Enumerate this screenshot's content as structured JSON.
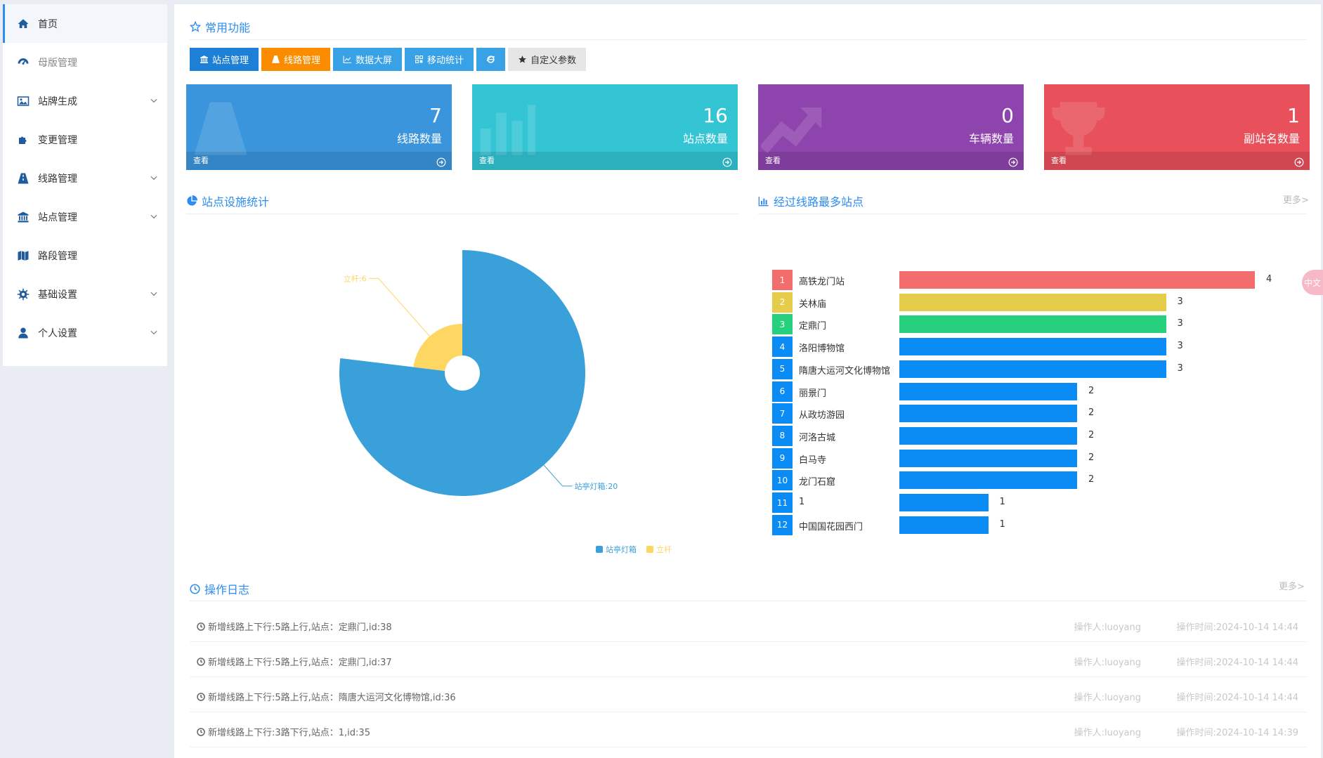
{
  "sidebar": {
    "items": [
      {
        "label": "首页",
        "icon": "home-icon",
        "active": true
      },
      {
        "label": "母版管理",
        "icon": "dashboard-icon"
      },
      {
        "label": "站牌生成",
        "icon": "image-icon",
        "expandable": true
      },
      {
        "label": "变更管理",
        "icon": "puzzle-icon"
      },
      {
        "label": "线路管理",
        "icon": "road-icon",
        "expandable": true
      },
      {
        "label": "站点管理",
        "icon": "bank-icon",
        "expandable": true
      },
      {
        "label": "路段管理",
        "icon": "map-icon"
      },
      {
        "label": "基础设置",
        "icon": "gear-icon",
        "expandable": true
      },
      {
        "label": "个人设置",
        "icon": "user-icon",
        "expandable": true
      }
    ]
  },
  "common": {
    "title": "常用功能",
    "buttons": [
      {
        "label": "站点管理",
        "icon": "bank-icon",
        "color": "#1e7fd6"
      },
      {
        "label": "线路管理",
        "icon": "road-icon",
        "color": "#fb8c00"
      },
      {
        "label": "数据大屏",
        "icon": "line-chart-icon",
        "color": "#39a2e6"
      },
      {
        "label": "移动统计",
        "icon": "qrcode-icon",
        "color": "#39a2e6"
      },
      {
        "label": "",
        "icon": "ie-icon",
        "color": "#39a2e6"
      },
      {
        "label": "自定义参数",
        "icon": "star-icon",
        "color": "#e6e6e6"
      }
    ]
  },
  "cards": [
    {
      "value": "7",
      "label": "线路数量",
      "link": "查看",
      "color": "#3a95dd",
      "icon": "road-icon"
    },
    {
      "value": "16",
      "label": "站点数量",
      "link": "查看",
      "color": "#33c5d4",
      "icon": "bar-chart-icon"
    },
    {
      "value": "0",
      "label": "车辆数量",
      "link": "查看",
      "color": "#8e44ad",
      "icon": "trend-icon"
    },
    {
      "value": "1",
      "label": "副站名数量",
      "link": "查看",
      "color": "#e8505b",
      "icon": "trophy-icon"
    }
  ],
  "pie_section": {
    "title": "站点设施统计"
  },
  "bar_section": {
    "title": "经过线路最多站点",
    "more": "更多>"
  },
  "log_section": {
    "title": "操作日志",
    "more": "更多>",
    "rows": [
      {
        "text": "新增线路上下行:5路上行,站点：定鼎门,id:38",
        "operator": "操作人:luoyang",
        "time": "操作时间:2024-10-14 14:44"
      },
      {
        "text": "新增线路上下行:5路上行,站点：定鼎门,id:37",
        "operator": "操作人:luoyang",
        "time": "操作时间:2024-10-14 14:44"
      },
      {
        "text": "新增线路上下行:5路上行,站点：隋唐大运河文化博物馆,id:36",
        "operator": "操作人:luoyang",
        "time": "操作时间:2024-10-14 14:44"
      },
      {
        "text": "新增线路上下行:3路下行,站点：1,id:35",
        "operator": "操作人:luoyang",
        "time": "操作时间:2024-10-14 14:39"
      }
    ]
  },
  "float_button": {
    "label": "中文"
  },
  "chart_data": [
    {
      "type": "pie",
      "rose": true,
      "slices": [
        {
          "name": "站亭灯箱",
          "value": 20,
          "label": "站亭灯箱:20",
          "color": "#3aa0d9"
        },
        {
          "name": "立杆",
          "value": 6,
          "label": "立杆:6",
          "color": "#fdd762"
        }
      ],
      "legend": [
        "站亭灯箱",
        "立杆"
      ],
      "legend_position": "bottom"
    },
    {
      "type": "bar",
      "orientation": "horizontal",
      "categories": [
        "高铁龙门站",
        "关林庙",
        "定鼎门",
        "洛阳博物馆",
        "隋唐大运河文化博物馆",
        "丽景门",
        "从政坊游园",
        "河洛古城",
        "白马寺",
        "龙门石窟",
        "1",
        "中国国花园西门"
      ],
      "ranks": [
        "1",
        "2",
        "3",
        "4",
        "5",
        "6",
        "7",
        "8",
        "9",
        "10",
        "11",
        "12"
      ],
      "values": [
        4,
        3,
        3,
        3,
        3,
        2,
        2,
        2,
        2,
        2,
        1,
        1
      ],
      "colors": [
        "#f46d6d",
        "#e5cc4a",
        "#27d07c",
        "#0b8cf5",
        "#0b8cf5",
        "#0b8cf5",
        "#0b8cf5",
        "#0b8cf5",
        "#0b8cf5",
        "#0b8cf5",
        "#0b8cf5",
        "#0b8cf5"
      ],
      "xlim": [
        0,
        4
      ]
    }
  ]
}
